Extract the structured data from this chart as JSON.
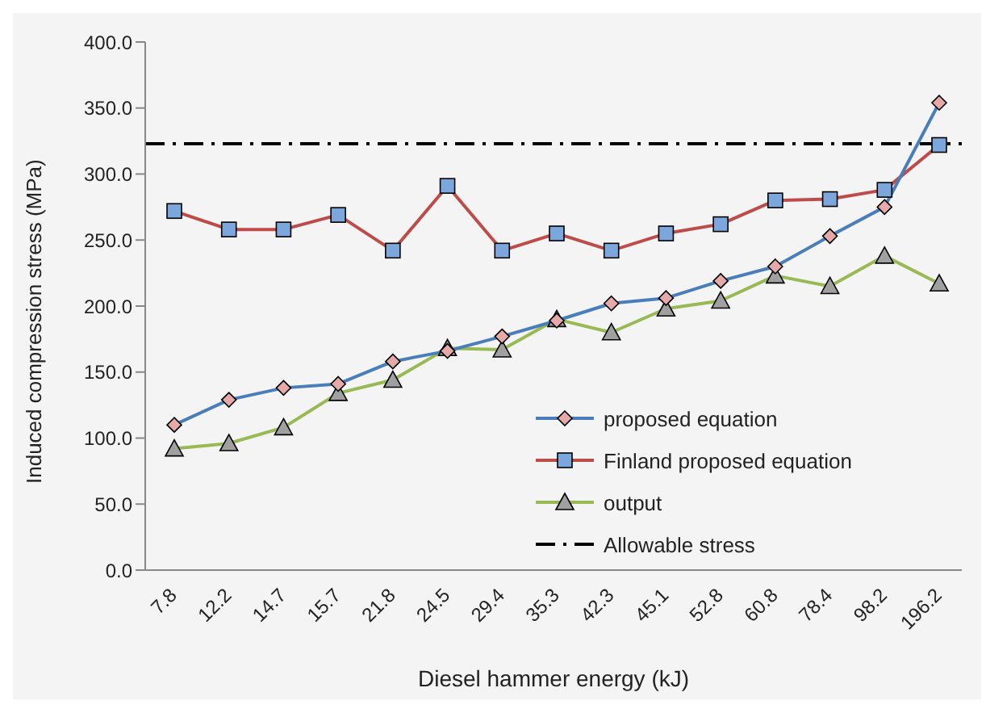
{
  "chart_data": {
    "type": "line",
    "xlabel": "Diesel hammer energy (kJ)",
    "ylabel": "Induced compression stress (MPa)",
    "categories": [
      "7.8",
      "12.2",
      "14.7",
      "15.7",
      "21.8",
      "24.5",
      "29.4",
      "35.3",
      "42.3",
      "45.1",
      "52.8",
      "60.8",
      "78.4",
      "98.2",
      "196.2"
    ],
    "series": [
      {
        "name": "proposed equation",
        "color": "#4a7ebb",
        "marker": "diamond",
        "values": [
          110,
          129,
          138,
          141,
          158,
          166,
          177,
          189,
          202,
          206,
          219,
          230,
          253,
          275,
          354
        ]
      },
      {
        "name": "Finland proposed equation",
        "color": "#be4b48",
        "marker": "square",
        "values": [
          272,
          258,
          258,
          269,
          242,
          291,
          242,
          255,
          242,
          255,
          262,
          280,
          281,
          288,
          322
        ]
      },
      {
        "name": "output",
        "color": "#98b954",
        "marker": "triangle",
        "values": [
          92,
          96,
          108,
          134,
          144,
          168,
          167,
          190,
          180,
          198,
          204,
          223,
          215,
          238,
          217
        ]
      }
    ],
    "ref_lines": [
      {
        "axis": "y",
        "value": 323,
        "label": "Allowable stress",
        "color": "#000000",
        "line_style": "dashed"
      }
    ],
    "ylim": [
      0,
      400
    ],
    "yticks": [
      {
        "value": 0,
        "label": "0.0"
      },
      {
        "value": 50,
        "label": "50.0"
      },
      {
        "value": 100,
        "label": "100.0"
      },
      {
        "value": 150,
        "label": "150.0"
      },
      {
        "value": 200,
        "label": "200.0"
      },
      {
        "value": 250,
        "label": "250.0"
      },
      {
        "value": 300,
        "label": "300.0"
      },
      {
        "value": 350,
        "label": "350.0"
      },
      {
        "value": 400,
        "label": "400.0"
      }
    ],
    "grid": false,
    "legend": "bottom right"
  }
}
